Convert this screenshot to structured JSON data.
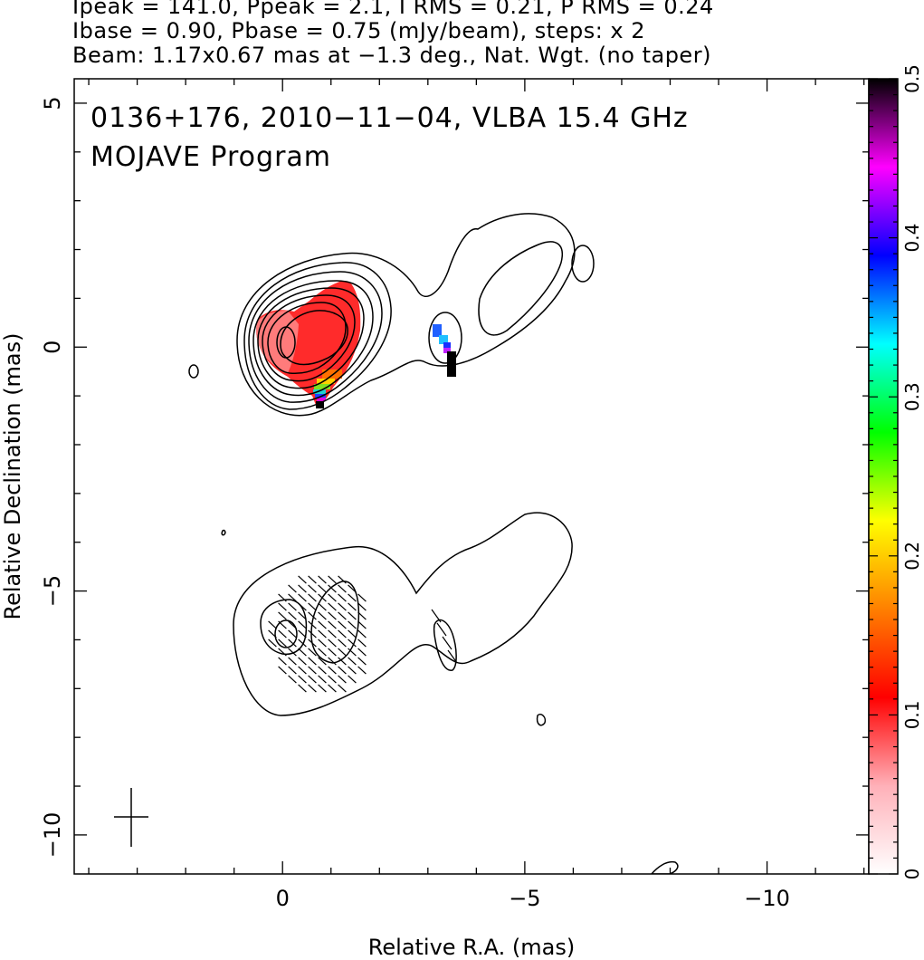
{
  "header": {
    "line1": "Ipeak = 141.0, Ppeak = 2.1, I RMS = 0.21, P RMS = 0.24",
    "line2": "Ibase = 0.90, Pbase = 0.75 (mJy/beam), steps: x 2",
    "line3": "Beam: 1.17x0.67 mas at −1.3 deg., Nat. Wgt. (no taper)"
  },
  "panel": {
    "label1": "0136+176, 2010−11−04, VLBA 15.4 GHz",
    "label2": "MOJAVE Program"
  },
  "chart_data": {
    "type": "heatmap",
    "xlabel": "Relative R.A. (mas)",
    "ylabel": "Relative Declination (mas)",
    "xlim": [
      4.3,
      -12.1
    ],
    "ylim": [
      -10.8,
      5.5
    ],
    "x_ticks": [
      0,
      -5,
      -10
    ],
    "x_tick_labels": [
      "0",
      "−5",
      "−10"
    ],
    "y_ticks": [
      5,
      0,
      -5,
      -10
    ],
    "y_tick_labels": [
      "5",
      "0",
      "−5",
      "−10"
    ],
    "colorbar": {
      "range": [
        0,
        0.5
      ],
      "ticks": [
        0,
        0.1,
        0.2,
        0.3,
        0.4,
        0.5
      ],
      "tick_labels": [
        "0",
        "0.1",
        "0.2",
        "0.3",
        "0.4",
        "0.5"
      ],
      "colors": [
        "#ffffff",
        "#ffb0b8",
        "#ff0000",
        "#ff8000",
        "#ffff00",
        "#00ff00",
        "#00ffff",
        "#0000ff",
        "#ff00ff",
        "#000000"
      ]
    },
    "upper_panel_center_dec": 0,
    "lower_panel_center_dec": -6,
    "contour_levels": 8,
    "polarized_core": {
      "ra": -0.7,
      "dec": 0,
      "value": 0.07
    },
    "polarized_knot": {
      "ra": -3.3,
      "dec": 0,
      "value_range": [
        0.35,
        0.5
      ]
    },
    "beam": {
      "major_mas": 1.17,
      "minor_mas": 0.67,
      "pa_deg": -1.3
    },
    "beam_marker": {
      "ra": 3.2,
      "dec": -9.6
    }
  }
}
